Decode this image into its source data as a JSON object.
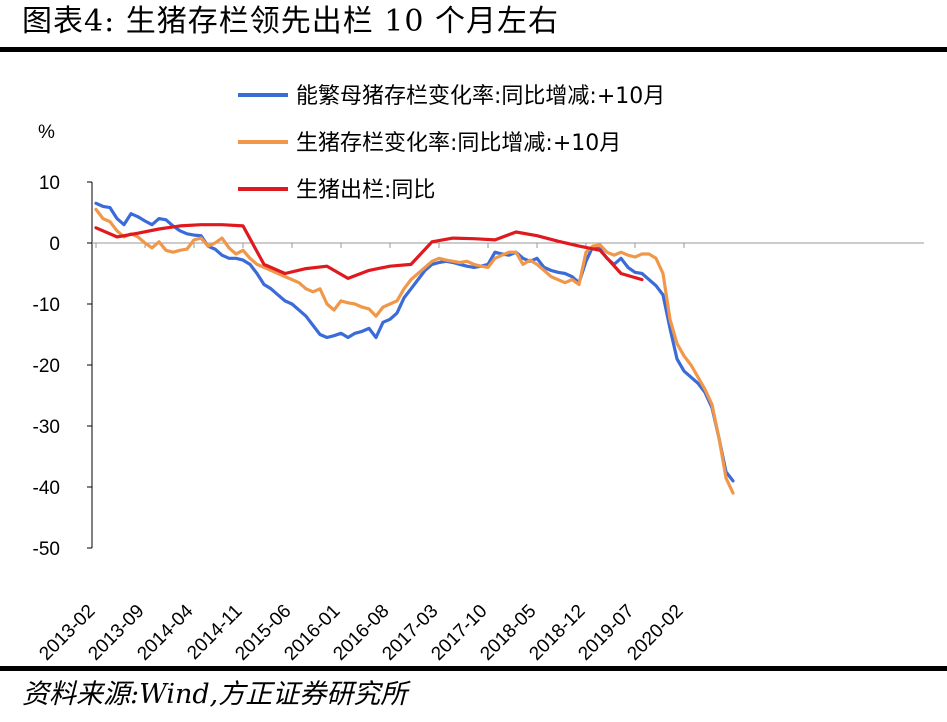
{
  "figure": {
    "title": "图表4:    生猪存栏领先出栏 10 个月左右",
    "source": "资料来源:Wind,方正证券研究所"
  },
  "colors": {
    "blue": "#3A6BD8",
    "orange": "#F0974A",
    "red": "#E0191F",
    "axis": "#000000",
    "zero_line": "#999999"
  },
  "chart_data": {
    "type": "line",
    "title": "",
    "ylabel": "%",
    "xlabel": "",
    "ylim": [
      -50,
      10
    ],
    "yticks": [
      10,
      0,
      -10,
      -20,
      -30,
      -40,
      -50
    ],
    "xlim": [
      0,
      97
    ],
    "xtick_labels": [
      "2013-02",
      "2013-09",
      "2014-04",
      "2014-11",
      "2015-06",
      "2016-01",
      "2016-08",
      "2017-03",
      "2017-10",
      "2018-05",
      "2018-12",
      "2019-07",
      "2020-02"
    ],
    "xtick_positions": [
      0,
      7,
      14,
      21,
      28,
      35,
      42,
      49,
      56,
      63,
      70,
      77,
      84
    ],
    "legend": [
      "能繁母猪存栏变化率:同比增减:+10月",
      "生猪存栏变化率:同比增减:+10月",
      "生猪出栏:同比"
    ],
    "series": [
      {
        "name": "能繁母猪存栏变化率:同比增减:+10月",
        "color": "#3A6BD8",
        "x": [
          0,
          1,
          2,
          3,
          4,
          5,
          6,
          7,
          8,
          9,
          10,
          11,
          12,
          13,
          14,
          15,
          16,
          17,
          18,
          19,
          20,
          21,
          22,
          23,
          24,
          25,
          26,
          27,
          28,
          29,
          30,
          31,
          32,
          33,
          34,
          35,
          36,
          37,
          38,
          39,
          40,
          41,
          42,
          43,
          44,
          45,
          46,
          47,
          48,
          49,
          50,
          51,
          52,
          53,
          54,
          55,
          56,
          57,
          58,
          59,
          60,
          61,
          62,
          63,
          64,
          65,
          66,
          67,
          68,
          69,
          70,
          71,
          72,
          73,
          74,
          75,
          76,
          77,
          78,
          79,
          80,
          81,
          82,
          83,
          84,
          85,
          86,
          87,
          88,
          89,
          90,
          91
        ],
        "values": [
          6.5,
          6.0,
          5.8,
          4.0,
          3.0,
          4.8,
          4.3,
          3.6,
          3.0,
          4.0,
          3.8,
          2.8,
          2.0,
          1.5,
          1.3,
          1.2,
          -0.5,
          -1.0,
          -2.0,
          -2.5,
          -2.5,
          -2.8,
          -3.5,
          -5.0,
          -6.8,
          -7.5,
          -8.5,
          -9.5,
          -10.0,
          -11.0,
          -12.0,
          -13.5,
          -15.0,
          -15.5,
          -15.2,
          -14.8,
          -15.5,
          -14.8,
          -14.5,
          -14.0,
          -15.5,
          -13.0,
          -12.5,
          -11.5,
          -9.0,
          -7.5,
          -6.0,
          -4.5,
          -3.5,
          -3.2,
          -3.0,
          -3.2,
          -3.5,
          -3.8,
          -4.0,
          -3.8,
          -3.5,
          -1.5,
          -1.8,
          -2.0,
          -1.5,
          -2.5,
          -3.0,
          -2.5,
          -4.0,
          -4.5,
          -4.8,
          -5.0,
          -5.5,
          -6.5,
          -3.0,
          -0.5,
          -1.0,
          -2.5,
          -3.5,
          -2.5,
          -4.0,
          -4.8,
          -5.0,
          -6.0,
          -7.0,
          -8.5,
          -14.0,
          -19.0,
          -21.0,
          -22.0,
          -23.0,
          -24.5,
          -27.0,
          -32.0,
          -37.5,
          -39.0
        ]
      },
      {
        "name": "生猪存栏变化率:同比增减:+10月",
        "color": "#F0974A",
        "x": [
          0,
          1,
          2,
          3,
          4,
          5,
          6,
          7,
          8,
          9,
          10,
          11,
          12,
          13,
          14,
          15,
          16,
          17,
          18,
          19,
          20,
          21,
          22,
          23,
          24,
          25,
          26,
          27,
          28,
          29,
          30,
          31,
          32,
          33,
          34,
          35,
          36,
          37,
          38,
          39,
          40,
          41,
          42,
          43,
          44,
          45,
          46,
          47,
          48,
          49,
          50,
          51,
          52,
          53,
          54,
          55,
          56,
          57,
          58,
          59,
          60,
          61,
          62,
          63,
          64,
          65,
          66,
          67,
          68,
          69,
          70,
          71,
          72,
          73,
          74,
          75,
          76,
          77,
          78,
          79,
          80,
          81,
          82,
          83,
          84,
          85,
          86,
          87,
          88,
          89,
          90,
          91
        ],
        "values": [
          5.5,
          4.0,
          3.5,
          2.0,
          1.0,
          1.5,
          1.0,
          0.0,
          -0.8,
          0.2,
          -1.2,
          -1.5,
          -1.2,
          -1.0,
          0.5,
          0.8,
          -0.5,
          0.0,
          0.8,
          -0.8,
          -1.8,
          -1.2,
          -2.5,
          -3.5,
          -4.0,
          -4.5,
          -5.0,
          -5.5,
          -6.0,
          -6.5,
          -7.5,
          -8.0,
          -7.5,
          -10.0,
          -11.0,
          -9.5,
          -9.8,
          -10.0,
          -10.5,
          -10.8,
          -12.0,
          -10.5,
          -10.0,
          -9.5,
          -7.5,
          -6.0,
          -5.0,
          -4.0,
          -3.0,
          -2.5,
          -2.8,
          -3.0,
          -3.2,
          -3.0,
          -3.5,
          -3.8,
          -4.0,
          -2.5,
          -2.0,
          -1.5,
          -1.5,
          -3.5,
          -2.8,
          -3.5,
          -4.5,
          -5.5,
          -6.0,
          -6.5,
          -6.0,
          -6.8,
          -1.5,
          -0.5,
          -0.3,
          -1.5,
          -2.0,
          -1.5,
          -2.0,
          -2.3,
          -1.8,
          -1.8,
          -2.5,
          -5.0,
          -12.5,
          -16.5,
          -18.5,
          -20.0,
          -22.0,
          -24.0,
          -26.5,
          -32.0,
          -38.5,
          -41.0
        ]
      },
      {
        "name": "生猪出栏:同比",
        "color": "#E0191F",
        "x": [
          0,
          3,
          6,
          9,
          12,
          15,
          18,
          21,
          24,
          27,
          30,
          33,
          36,
          39,
          42,
          45,
          48,
          51,
          54,
          57,
          60,
          63,
          66,
          69,
          72,
          75,
          78
        ],
        "values": [
          2.5,
          1.0,
          1.6,
          2.3,
          2.8,
          3.0,
          3.0,
          2.8,
          -3.5,
          -5.0,
          -4.2,
          -3.8,
          -5.8,
          -4.5,
          -3.8,
          -3.5,
          0.2,
          0.8,
          0.7,
          0.5,
          1.8,
          1.2,
          0.3,
          -0.5,
          -1.2,
          -5.0,
          -6.0
        ]
      }
    ]
  }
}
